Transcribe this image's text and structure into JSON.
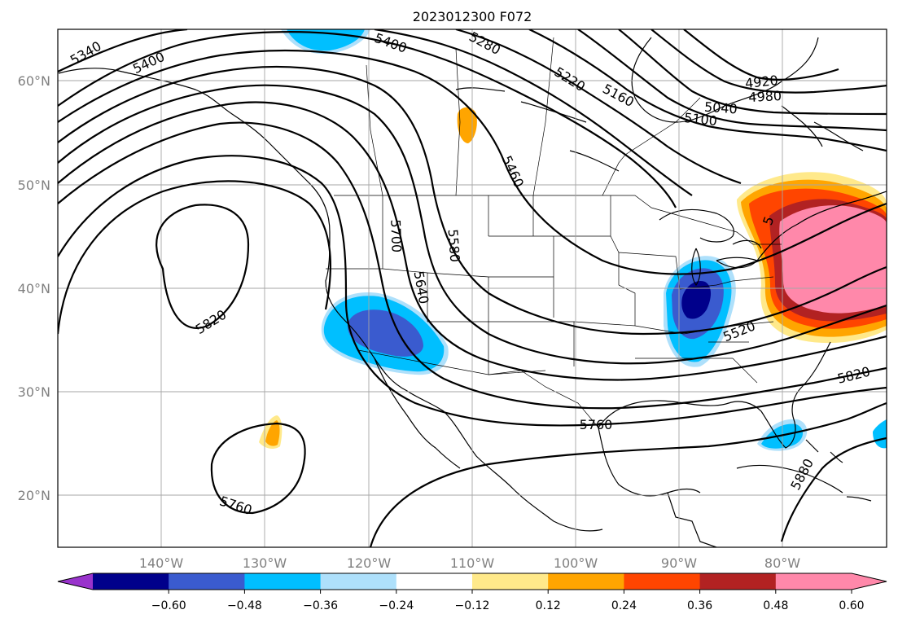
{
  "title": "2023012300 F072",
  "lat_labels": [
    "60°N",
    "50°N",
    "40°N",
    "30°N",
    "20°N"
  ],
  "lon_labels": [
    "140°W",
    "130°W",
    "120°W",
    "110°W",
    "100°W",
    "90°W",
    "80°W"
  ],
  "contour_labels": [
    "5340",
    "5400",
    "5400",
    "5280",
    "5220",
    "5160",
    "4920",
    "4980",
    "5040",
    "5100",
    "5460",
    "5700",
    "5580",
    "5640",
    "5820",
    "5520",
    "5820",
    "5760",
    "5760",
    "5880",
    "5"
  ],
  "colorbar": {
    "tick_labels": [
      "−0.60",
      "−0.48",
      "−0.36",
      "−0.24",
      "−0.12",
      "0.12",
      "0.24",
      "0.36",
      "0.48",
      "0.60"
    ],
    "colors": [
      "#9933cc",
      "#00008b",
      "#3a5bcf",
      "#00bfff",
      "#aee0fb",
      "#ffffff",
      "#ffe98a",
      "#ffa500",
      "#ff4500",
      "#b22222",
      "#ff88aa",
      "#ff88aa"
    ]
  }
}
